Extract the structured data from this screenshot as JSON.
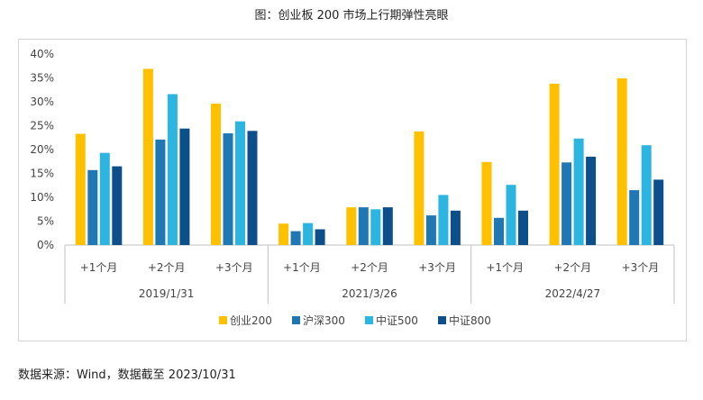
{
  "title": "图：创业板 200 市场上行期弹性亮眼",
  "source": "数据来源：Wind，数据截至 2023/10/31",
  "chart_data": {
    "type": "bar",
    "title": "图：创业板 200 市场上行期弹性亮眼",
    "ylim": [
      0,
      0.4
    ],
    "yticks": [
      "0%",
      "5%",
      "10%",
      "15%",
      "20%",
      "25%",
      "30%",
      "35%",
      "40%"
    ],
    "grid": false,
    "legend_position": "bottom",
    "groups": [
      {
        "label": "2019/1/31",
        "categories": [
          "+1个月",
          "+2个月",
          "+3个月"
        ]
      },
      {
        "label": "2021/3/26",
        "categories": [
          "+1个月",
          "+2个月",
          "+3个月"
        ]
      },
      {
        "label": "2022/4/27",
        "categories": [
          "+1个月",
          "+2个月",
          "+3个月"
        ]
      }
    ],
    "series": [
      {
        "name": "创业200",
        "color": "#FFC000",
        "values": [
          0.233,
          0.369,
          0.296,
          0.045,
          0.079,
          0.238,
          0.174,
          0.338,
          0.349
        ]
      },
      {
        "name": "沪深300",
        "color": "#1F77B4",
        "values": [
          0.157,
          0.221,
          0.234,
          0.029,
          0.079,
          0.062,
          0.057,
          0.173,
          0.115
        ]
      },
      {
        "name": "中证500",
        "color": "#2BB5E0",
        "values": [
          0.193,
          0.316,
          0.259,
          0.046,
          0.075,
          0.105,
          0.126,
          0.223,
          0.209
        ]
      },
      {
        "name": "中证800",
        "color": "#0D4F8B",
        "values": [
          0.165,
          0.244,
          0.239,
          0.033,
          0.079,
          0.072,
          0.072,
          0.185,
          0.137
        ]
      }
    ]
  }
}
